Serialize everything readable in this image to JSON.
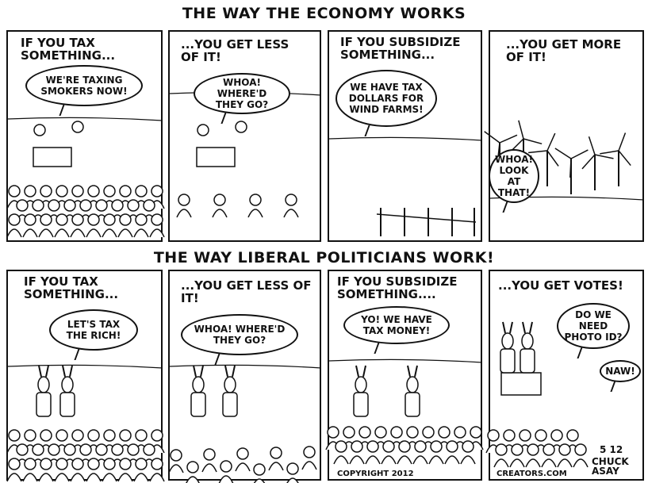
{
  "rows": [
    {
      "title": "THE WAY THE ECONOMY WORKS",
      "panels": [
        {
          "caption": "IF YOU TAX SOMETHING...",
          "bubbles": [
            "WE'RE TAXING SMOKERS NOW!"
          ]
        },
        {
          "caption": "...YOU GET LESS OF IT!",
          "bubbles": [
            "WHOA! WHERE'D THEY GO?"
          ]
        },
        {
          "caption": "IF YOU SUBSIDIZE SOMETHING...",
          "bubbles": [
            "WE HAVE TAX DOLLARS FOR WIND FARMS!"
          ]
        },
        {
          "caption": "...YOU GET MORE OF IT!",
          "bubbles": [
            "WHOA! LOOK AT THAT!"
          ]
        }
      ]
    },
    {
      "title": "THE WAY LIBERAL POLITICIANS WORK!",
      "panels": [
        {
          "caption": "IF YOU TAX SOMETHING...",
          "bubbles": [
            "LET'S TAX THE RICH!"
          ]
        },
        {
          "caption": "...YOU GET LESS OF IT!",
          "bubbles": [
            "WHOA! WHERE'D THEY GO?"
          ]
        },
        {
          "caption": "IF YOU SUBSIDIZE SOMETHING....",
          "bubbles": [
            "YO! WE HAVE TAX MONEY!"
          ]
        },
        {
          "caption": "...YOU GET VOTES!",
          "bubbles": [
            "DO WE NEED PHOTO ID?",
            "NAW!"
          ]
        }
      ]
    }
  ],
  "credits": {
    "copyright": "COPYRIGHT 2012",
    "website": "CREATORS.COM",
    "date": "5 12",
    "signature": "CHUCK ASAY"
  }
}
